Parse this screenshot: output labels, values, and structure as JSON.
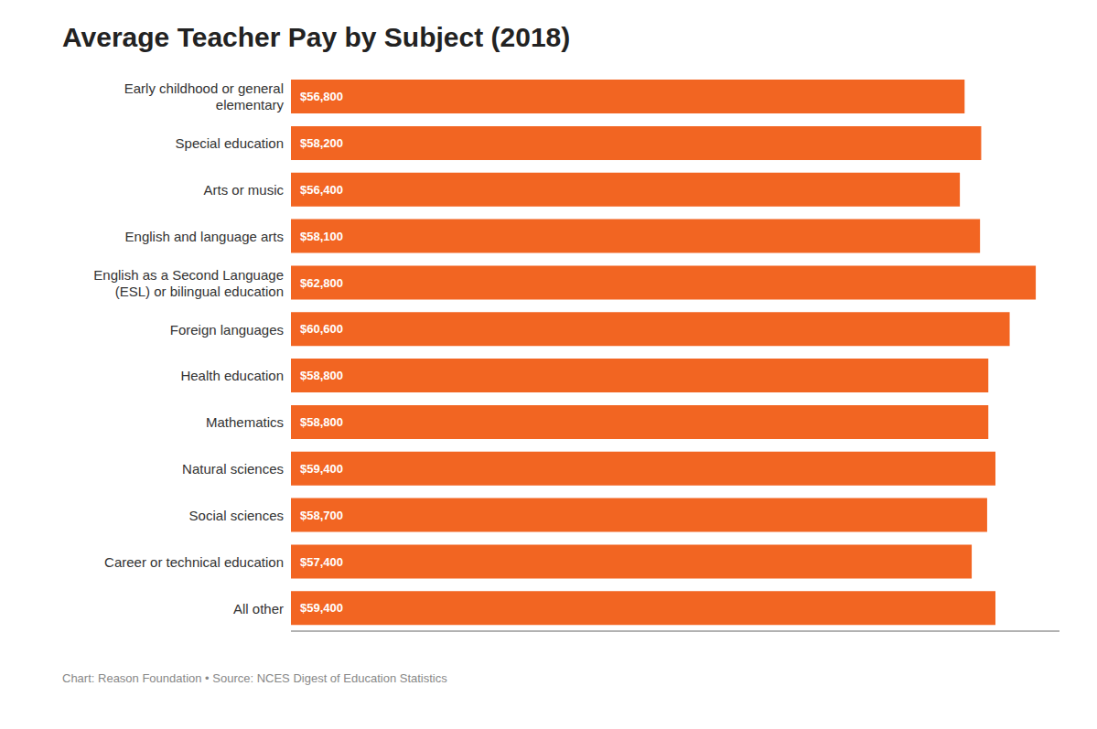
{
  "chart_data": {
    "type": "bar",
    "orientation": "horizontal",
    "title": "Average Teacher Pay by Subject (2018)",
    "annotations": [
      "Chart: Reason Foundation • Source: NCES Digest of Education Statistics"
    ],
    "categories": [
      "Early childhood or general\nelementary",
      "Special education",
      "Arts or music",
      "English and language arts",
      "English as a Second Language\n(ESL) or bilingual education",
      "Foreign languages",
      "Health education",
      "Mathematics",
      "Natural sciences",
      "Social sciences",
      "Career or technical education",
      "All other"
    ],
    "values": [
      56800,
      58200,
      56400,
      58100,
      62800,
      60600,
      58800,
      58800,
      59400,
      58700,
      57400,
      59400
    ],
    "value_labels": [
      "$56,800",
      "$58,200",
      "$56,400",
      "$58,100",
      "$62,800",
      "$60,600",
      "$58,800",
      "$58,800",
      "$59,400",
      "$58,700",
      "$57,400",
      "$59,400"
    ],
    "data_labels": true,
    "color": "#F26522",
    "xlim": [
      0,
      64800
    ],
    "tick_labels": "y",
    "grid": false
  }
}
